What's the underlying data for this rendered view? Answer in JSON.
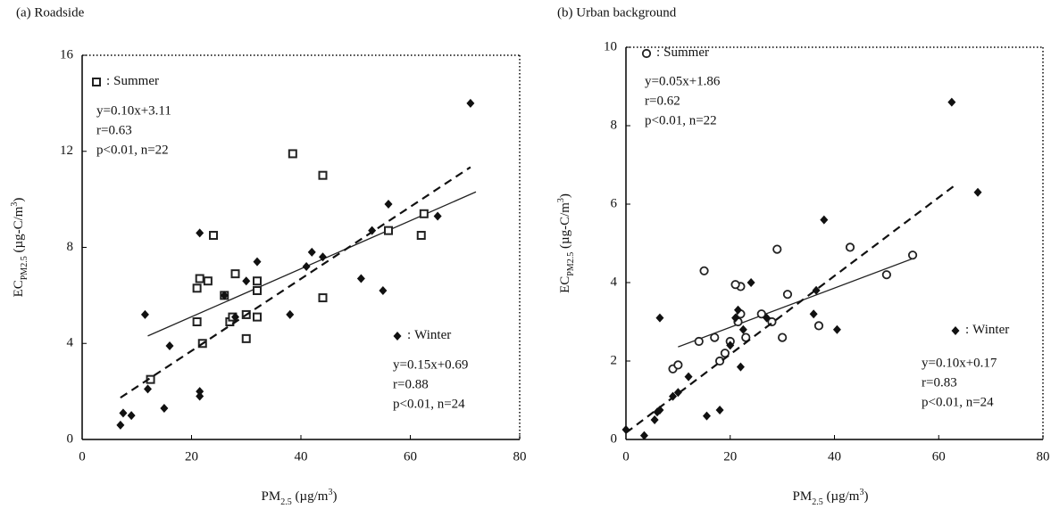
{
  "chart_data": [
    {
      "type": "scatter",
      "title": "(a) Roadside",
      "xlabel": [
        "PM",
        "2.5",
        " (µg/m",
        "3",
        ")"
      ],
      "ylabel": [
        "EC",
        "PM2.5",
        " (µg-C/m",
        "3",
        ")"
      ],
      "xlim": [
        0,
        80
      ],
      "xticks": [
        0,
        20,
        40,
        60,
        80
      ],
      "ylim": [
        0,
        16
      ],
      "yticks": [
        0,
        4,
        8,
        12,
        16
      ],
      "legend_separator": ":",
      "series": [
        {
          "name": "Summer",
          "marker": "square",
          "color": "#222",
          "x": [
            12.5,
            21,
            21,
            21.5,
            22,
            23,
            24,
            26,
            27,
            27.5,
            28,
            30,
            30,
            32,
            32,
            32,
            38.5,
            44,
            44,
            56,
            62,
            62.5
          ],
          "values": [
            2.5,
            4.9,
            6.3,
            6.7,
            4.0,
            6.6,
            8.5,
            6.0,
            4.9,
            5.1,
            6.9,
            5.2,
            4.2,
            6.2,
            6.6,
            5.1,
            11.9,
            11.0,
            5.9,
            8.7,
            8.5,
            9.4
          ],
          "fit": {
            "slope": 0.1,
            "intercept": 3.11,
            "x": [
              12,
              72
            ],
            "dash": "none"
          },
          "stats": [
            "y=0.10x+3.11",
            "r=0.63",
            "p<0.01, n=22"
          ]
        },
        {
          "name": "Winter",
          "marker": "diamond",
          "color": "#111",
          "x": [
            7,
            7.5,
            9,
            11.5,
            12,
            15,
            16,
            21.5,
            21.5,
            21.5,
            26,
            28,
            30,
            32,
            38,
            41,
            42,
            44,
            51,
            53,
            55,
            56,
            65,
            71
          ],
          "values": [
            0.6,
            1.1,
            1.0,
            5.2,
            2.1,
            1.3,
            3.9,
            2.0,
            1.8,
            8.6,
            6.0,
            5.1,
            6.6,
            7.4,
            5.2,
            7.2,
            7.8,
            7.6,
            6.7,
            8.7,
            6.2,
            9.8,
            9.3,
            14.0
          ],
          "fit": {
            "slope": 0.15,
            "intercept": 0.69,
            "x": [
              7,
              71
            ],
            "dash": "9 6"
          },
          "stats": [
            "y=0.15x+0.69",
            "r=0.88",
            "p<0.01, n=24"
          ]
        }
      ]
    },
    {
      "type": "scatter",
      "title": "(b) Urban background",
      "xlabel": [
        "PM",
        "2.5",
        " (µg/m",
        "3",
        ")"
      ],
      "ylabel": [
        "EC",
        "PM2.5",
        " (µg-C/m",
        "3",
        ")"
      ],
      "xlim": [
        0,
        80
      ],
      "xticks": [
        0,
        20,
        40,
        60,
        80
      ],
      "ylim": [
        0,
        10
      ],
      "yticks": [
        0,
        2,
        4,
        6,
        8,
        10
      ],
      "legend_separator": ":",
      "series": [
        {
          "name": "Summer",
          "marker": "circle",
          "color": "#222",
          "x": [
            9,
            10,
            14,
            15,
            17,
            18,
            19,
            20,
            21.5,
            22,
            22,
            23,
            26,
            28,
            29,
            30,
            31,
            37,
            43,
            50,
            55,
            21
          ],
          "values": [
            1.8,
            1.9,
            2.5,
            4.3,
            2.6,
            2.0,
            2.2,
            2.5,
            3.0,
            3.9,
            3.2,
            2.6,
            3.2,
            3.0,
            4.85,
            2.6,
            3.7,
            2.9,
            4.9,
            4.2,
            4.7,
            3.95
          ],
          "fit": {
            "slope": 0.05,
            "intercept": 1.86,
            "x": [
              10,
              55
            ],
            "dash": "none"
          },
          "stats": [
            "y=0.05x+1.86",
            "r=0.62",
            "p<0.01, n=22"
          ]
        },
        {
          "name": "Winter",
          "marker": "diamond",
          "color": "#111",
          "x": [
            0,
            3.5,
            5.5,
            6,
            6.5,
            6.5,
            9,
            10,
            12,
            15.5,
            18,
            20,
            21,
            21.5,
            22,
            22.5,
            24,
            27,
            36,
            36.5,
            38,
            40.5,
            62.5,
            67.5
          ],
          "values": [
            0.25,
            0.1,
            0.5,
            0.7,
            0.75,
            3.1,
            1.1,
            1.2,
            1.6,
            0.6,
            0.75,
            2.4,
            3.1,
            3.3,
            1.85,
            2.8,
            4.0,
            3.1,
            3.2,
            3.8,
            5.6,
            2.8,
            8.6,
            6.3
          ],
          "fit": {
            "slope": 0.1,
            "intercept": 0.17,
            "x": [
              0,
              63
            ],
            "dash": "9 6"
          },
          "stats": [
            "y=0.10x+0.17",
            "r=0.83",
            "p<0.01, n=24"
          ]
        }
      ]
    }
  ]
}
